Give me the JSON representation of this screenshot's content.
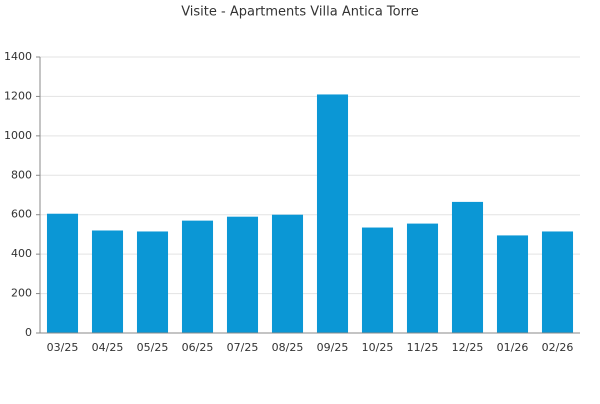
{
  "chart_data": {
    "type": "bar",
    "title": "Visite - Apartments Villa Antica Torre",
    "categories": [
      "03/25",
      "04/25",
      "05/25",
      "06/25",
      "07/25",
      "08/25",
      "09/25",
      "10/25",
      "11/25",
      "12/25",
      "01/26",
      "02/26"
    ],
    "values": [
      605,
      520,
      515,
      570,
      590,
      600,
      1210,
      535,
      555,
      665,
      495,
      515
    ],
    "color": "#0b97d5",
    "ylim": [
      0,
      1400
    ],
    "yticks": [
      0,
      200,
      400,
      600,
      800,
      1000,
      1200,
      1400
    ],
    "grid": true
  }
}
